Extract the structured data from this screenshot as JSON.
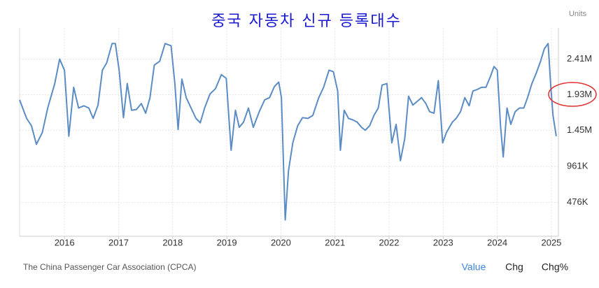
{
  "chart_data": {
    "type": "line",
    "title": "중국 자동차 신규 등록대수",
    "units_label": "Units",
    "source": "The China Passenger Car Association (CPCA)",
    "buttons": [
      "Value",
      "Chg",
      "Chg%"
    ],
    "grid": true,
    "xlim": [
      2015.17,
      2025.13
    ],
    "xticks": [
      2016,
      2017,
      2018,
      2019,
      2020,
      2021,
      2022,
      2023,
      2024,
      2025
    ],
    "ylim": [
      20000,
      2830000
    ],
    "yticks": [
      {
        "value": 476000,
        "label": "476K"
      },
      {
        "value": 961000,
        "label": "961K"
      },
      {
        "value": 1450000,
        "label": "1.45M"
      },
      {
        "value": 1930000,
        "label": "1.93M"
      },
      {
        "value": 2410000,
        "label": "2.41M"
      }
    ],
    "x": [
      2015.17,
      2015.3,
      2015.39,
      2015.48,
      2015.59,
      2015.69,
      2015.82,
      2015.91,
      2016.0,
      2016.08,
      2016.17,
      2016.26,
      2016.36,
      2016.45,
      2016.53,
      2016.62,
      2016.7,
      2016.78,
      2016.88,
      2016.94,
      2017.01,
      2017.09,
      2017.16,
      2017.24,
      2017.33,
      2017.42,
      2017.5,
      2017.58,
      2017.66,
      2017.76,
      2017.86,
      2017.97,
      2018.04,
      2018.1,
      2018.17,
      2018.25,
      2018.34,
      2018.43,
      2018.51,
      2018.59,
      2018.69,
      2018.79,
      2018.9,
      2018.99,
      2019.08,
      2019.16,
      2019.23,
      2019.31,
      2019.4,
      2019.49,
      2019.6,
      2019.7,
      2019.79,
      2019.88,
      2019.96,
      2020.01,
      2020.08,
      2020.14,
      2020.22,
      2020.31,
      2020.4,
      2020.5,
      2020.59,
      2020.7,
      2020.79,
      2020.89,
      2020.97,
      2021.05,
      2021.1,
      2021.17,
      2021.25,
      2021.33,
      2021.41,
      2021.49,
      2021.56,
      2021.64,
      2021.72,
      2021.8,
      2021.87,
      2021.96,
      2022.05,
      2022.13,
      2022.21,
      2022.29,
      2022.36,
      2022.44,
      2022.52,
      2022.6,
      2022.68,
      2022.75,
      2022.83,
      2022.91,
      2022.99,
      2023.06,
      2023.17,
      2023.24,
      2023.32,
      2023.4,
      2023.48,
      2023.55,
      2023.63,
      2023.71,
      2023.79,
      2023.87,
      2023.94,
      2024.0,
      2024.06,
      2024.11,
      2024.18,
      2024.25,
      2024.33,
      2024.41,
      2024.49,
      2024.56,
      2024.64,
      2024.72,
      2024.8,
      2024.87,
      2024.94,
      2024.99,
      2025.03,
      2025.09
    ],
    "series": [
      {
        "color": "#5b8cc4",
        "values": [
          1860000,
          1610000,
          1510000,
          1260000,
          1420000,
          1750000,
          2080000,
          2410000,
          2260000,
          1370000,
          2030000,
          1750000,
          1780000,
          1750000,
          1610000,
          1790000,
          2260000,
          2360000,
          2620000,
          2620000,
          2260000,
          1620000,
          2080000,
          1720000,
          1730000,
          1810000,
          1680000,
          1890000,
          2330000,
          2380000,
          2620000,
          2590000,
          2080000,
          1460000,
          2140000,
          1890000,
          1750000,
          1610000,
          1550000,
          1750000,
          1940000,
          2010000,
          2200000,
          2150000,
          1180000,
          1720000,
          1490000,
          1560000,
          1750000,
          1490000,
          1700000,
          1860000,
          1890000,
          2040000,
          2100000,
          1890000,
          240000,
          900000,
          1280000,
          1510000,
          1620000,
          1610000,
          1650000,
          1890000,
          2030000,
          2260000,
          2240000,
          1980000,
          1180000,
          1720000,
          1610000,
          1590000,
          1560000,
          1490000,
          1450000,
          1510000,
          1650000,
          1750000,
          2060000,
          2080000,
          1280000,
          1530000,
          1040000,
          1340000,
          1910000,
          1790000,
          1840000,
          1890000,
          1810000,
          1700000,
          1680000,
          2120000,
          1280000,
          1420000,
          1560000,
          1610000,
          1700000,
          1890000,
          1780000,
          1980000,
          2000000,
          2030000,
          2030000,
          2170000,
          2310000,
          2260000,
          1510000,
          1090000,
          1750000,
          1530000,
          1700000,
          1750000,
          1750000,
          1890000,
          2080000,
          2220000,
          2380000,
          2550000,
          2620000,
          2030000,
          1650000,
          1370000
        ]
      }
    ]
  }
}
